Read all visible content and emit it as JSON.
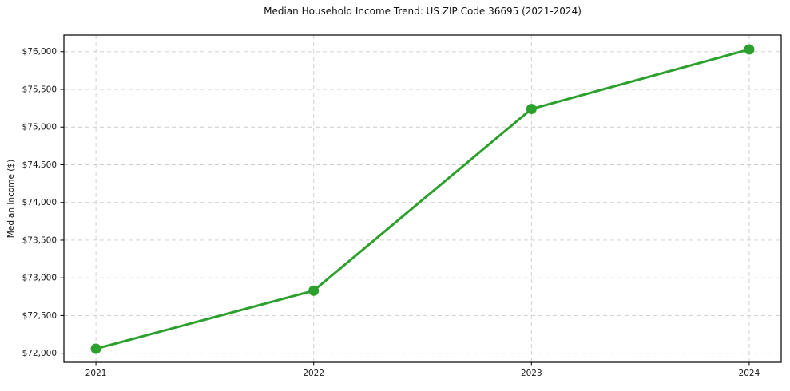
{
  "chart_data": {
    "type": "line",
    "title": "Median Household Income Trend: US ZIP Code 36695 (2021-2024)",
    "xlabel": "",
    "ylabel": "Median Income ($)",
    "x": [
      2021,
      2022,
      2023,
      2024
    ],
    "values": [
      72060,
      72830,
      75240,
      76030
    ],
    "xticks": [
      2021,
      2022,
      2023,
      2024
    ],
    "xtick_labels": [
      "2021",
      "2022",
      "2023",
      "2024"
    ],
    "yticks": [
      72000,
      72500,
      73000,
      73500,
      74000,
      74500,
      75000,
      75500,
      76000
    ],
    "ytick_labels": [
      "$72,000",
      "$72,500",
      "$73,000",
      "$73,500",
      "$74,000",
      "$74,500",
      "$75,000",
      "$75,500",
      "$76,000"
    ],
    "xlim": [
      2020.853,
      2024.147
    ],
    "ylim": [
      71880,
      76220
    ],
    "grid": true,
    "grid_style": "dashed",
    "grid_color": "#cccccc",
    "line_color": "#2ca02c",
    "marker": "circle",
    "spine_color": "#000000",
    "background_color": "#ffffff",
    "legend": false
  }
}
